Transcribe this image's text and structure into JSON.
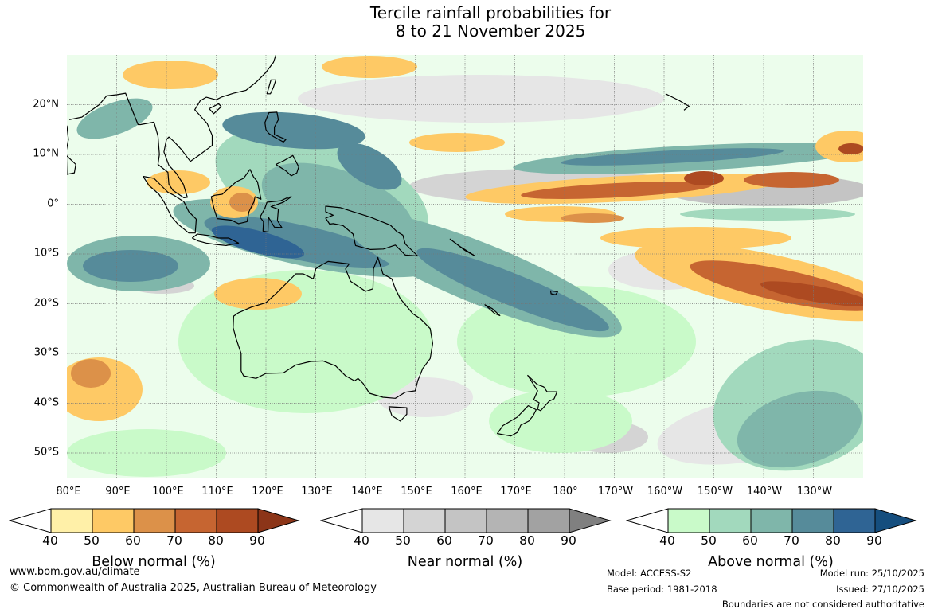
{
  "title": {
    "line1": "Tercile rainfall probabilities for",
    "line2": "8 to 21 November 2025"
  },
  "map": {
    "lat_labels": [
      "20°N",
      "10°N",
      "0°",
      "10°S",
      "20°S",
      "30°S",
      "40°S",
      "50°S"
    ],
    "lon_labels": [
      "80°E",
      "90°E",
      "100°E",
      "110°E",
      "120°E",
      "130°E",
      "140°E",
      "150°E",
      "160°E",
      "170°E",
      "180°",
      "170°W",
      "160°W",
      "150°W",
      "140°W",
      "130°W"
    ],
    "colors": {
      "below": [
        "#fff0a8",
        "#fec965",
        "#dc9149",
        "#c66531",
        "#ad4a21",
        "#8c3518"
      ],
      "near": [
        "#e6e6e6",
        "#d4d4d4",
        "#c4c4c4",
        "#b4b4b4",
        "#a2a2a2",
        "#808080"
      ],
      "above": [
        "#c9fac9",
        "#a2d9bd",
        "#7fb6aa",
        "#568b9a",
        "#2f6494",
        "#154e7e"
      ]
    }
  },
  "legends": [
    {
      "title": "Below normal (%)",
      "ticks": [
        "40",
        "50",
        "60",
        "70",
        "80",
        "90"
      ]
    },
    {
      "title": "Near normal (%)",
      "ticks": [
        "40",
        "50",
        "60",
        "70",
        "80",
        "90"
      ]
    },
    {
      "title": "Above normal (%)",
      "ticks": [
        "40",
        "50",
        "60",
        "70",
        "80",
        "90"
      ]
    }
  ],
  "footer": {
    "website": "www.bom.gov.au/climate",
    "copyright": "© Commonwealth of Australia 2025, Australian Bureau of Meteorology",
    "model": "Model: ACCESS-S2",
    "base_period": "Base period: 1981-2018",
    "model_run": "Model run: 25/10/2025",
    "issued": "Issued: 27/10/2025",
    "disclaimer": "Boundaries are not considered authoritative"
  }
}
